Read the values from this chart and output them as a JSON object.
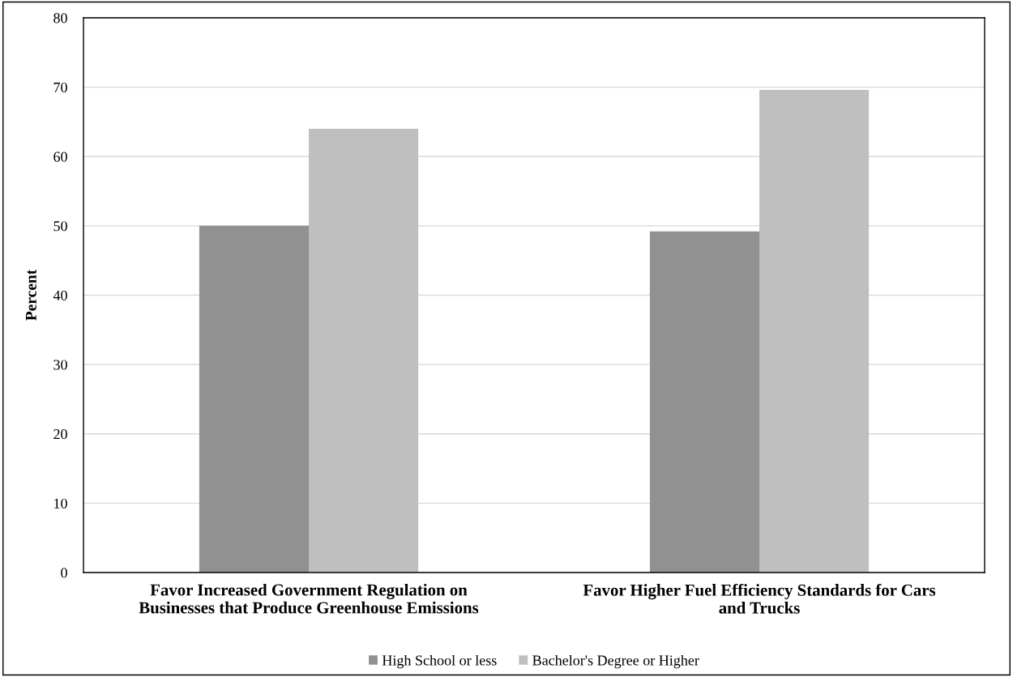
{
  "chart_data": {
    "type": "bar",
    "ylabel": "Percent",
    "categories": [
      "Favor Increased Government Regulation on\nBusinesses that Produce Greenhouse Emissions",
      "Favor Higher Fuel Efficiency Standards for Cars\nand Trucks"
    ],
    "series": [
      {
        "name": "High School or less",
        "color": "#919191",
        "values": [
          50,
          49.2
        ]
      },
      {
        "name": "Bachelor's Degree or Higher",
        "color": "#bfbfbf",
        "values": [
          64,
          69.6
        ]
      }
    ],
    "ylim": [
      0,
      80
    ],
    "yticks": [
      0,
      10,
      20,
      30,
      40,
      50,
      60,
      70,
      80
    ],
    "grid": "y",
    "legend": "bottom"
  }
}
